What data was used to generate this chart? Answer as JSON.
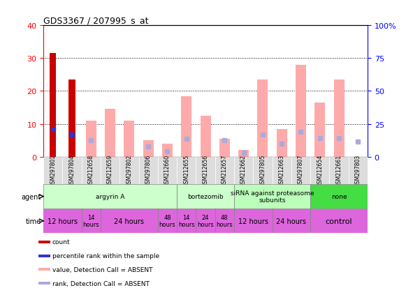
{
  "title": "GDS3367 / 207995_s_at",
  "samples": [
    "GSM297801",
    "GSM297804",
    "GSM212658",
    "GSM212659",
    "GSM297802",
    "GSM297806",
    "GSM212660",
    "GSM212655",
    "GSM212656",
    "GSM212657",
    "GSM212662",
    "GSM297805",
    "GSM212663",
    "GSM297807",
    "GSM212654",
    "GSM212661",
    "GSM297803"
  ],
  "count_values": [
    31.5,
    23.5,
    0,
    0,
    0,
    0,
    0,
    0,
    0,
    0,
    0,
    0,
    0,
    0,
    0,
    0,
    0
  ],
  "rank_values": [
    21,
    17,
    0,
    0,
    0,
    0,
    0,
    0,
    0,
    0,
    0,
    0,
    0,
    0,
    0,
    0,
    0
  ],
  "absent_value_bars": [
    0,
    0,
    11,
    14.5,
    11,
    5,
    4,
    18.5,
    12.5,
    5.5,
    2,
    23.5,
    8.5,
    28,
    16.5,
    23.5,
    0
  ],
  "absent_rank_bars": [
    0,
    0,
    12.5,
    0,
    0,
    8,
    4,
    13.5,
    0,
    12.5,
    3,
    17,
    10,
    19,
    14,
    14,
    11.5
  ],
  "ylim_left": [
    0,
    40
  ],
  "ylim_right": [
    0,
    100
  ],
  "yticks_left": [
    0,
    10,
    20,
    30,
    40
  ],
  "yticks_right": [
    0,
    25,
    50,
    75,
    100
  ],
  "yticklabels_right": [
    "0",
    "25",
    "50",
    "75",
    "100%"
  ],
  "color_count": "#cc0000",
  "color_rank": "#3333cc",
  "color_absent_value": "#ffaaaa",
  "color_absent_rank": "#aaaadd",
  "agent_groups": [
    {
      "label": "argyrin A",
      "start": 0,
      "end": 7,
      "color": "#ccffcc"
    },
    {
      "label": "bortezomib",
      "start": 7,
      "end": 10,
      "color": "#ccffcc"
    },
    {
      "label": "siRNA against proteasome\nsubunits",
      "start": 10,
      "end": 14,
      "color": "#bbffbb"
    },
    {
      "label": "none",
      "start": 14,
      "end": 17,
      "color": "#44dd44"
    }
  ],
  "time_groups": [
    {
      "label": "12 hours",
      "start": 0,
      "end": 2,
      "fontsize": 7
    },
    {
      "label": "14\nhours",
      "start": 2,
      "end": 3,
      "fontsize": 6
    },
    {
      "label": "24 hours",
      "start": 3,
      "end": 6,
      "fontsize": 7
    },
    {
      "label": "48\nhours",
      "start": 6,
      "end": 7,
      "fontsize": 6
    },
    {
      "label": "14\nhours",
      "start": 7,
      "end": 8,
      "fontsize": 6
    },
    {
      "label": "24\nhours",
      "start": 8,
      "end": 9,
      "fontsize": 6
    },
    {
      "label": "48\nhours",
      "start": 9,
      "end": 10,
      "fontsize": 6
    },
    {
      "label": "12 hours",
      "start": 10,
      "end": 12,
      "fontsize": 7
    },
    {
      "label": "24 hours",
      "start": 12,
      "end": 14,
      "fontsize": 7
    },
    {
      "label": "control",
      "start": 14,
      "end": 17,
      "fontsize": 8
    }
  ],
  "legend_items": [
    {
      "label": "count",
      "color": "#cc0000"
    },
    {
      "label": "percentile rank within the sample",
      "color": "#3333cc"
    },
    {
      "label": "value, Detection Call = ABSENT",
      "color": "#ffaaaa"
    },
    {
      "label": "rank, Detection Call = ABSENT",
      "color": "#aaaadd"
    }
  ]
}
